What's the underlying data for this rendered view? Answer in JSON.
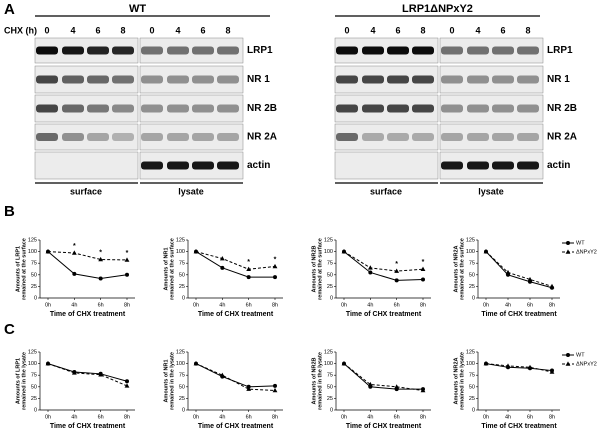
{
  "panel_labels": [
    "A",
    "B",
    "C"
  ],
  "blot": {
    "lane_axis_label": "CHX (h)",
    "groups": [
      {
        "title": "WT",
        "lanes": [
          "0",
          "4",
          "6",
          "8",
          "0",
          "4",
          "6",
          "8"
        ],
        "fractions": [
          "surface",
          "lysate"
        ],
        "rows": [
          "LRP1",
          "NR 1",
          "NR 2B",
          "NR 2A",
          "actin"
        ]
      },
      {
        "title": "LRP1ΔNPxY2",
        "lanes": [
          "0",
          "4",
          "6",
          "8",
          "0",
          "4",
          "6",
          "8"
        ],
        "fractions": [
          "surface",
          "lysate"
        ],
        "rows": [
          "LRP1",
          "NR 1",
          "NR 2B",
          "NR 2A",
          "actin"
        ]
      }
    ]
  },
  "chart_data": [
    {
      "type": "line",
      "ylabel": [
        "Amounts of LRP1",
        "remained at the surface"
      ],
      "xlabel": "Time of CHX treatment",
      "categories": [
        "0h",
        "4h",
        "6h",
        "8h"
      ],
      "ylim": [
        0,
        125
      ],
      "yticks": [
        0,
        25,
        50,
        75,
        100,
        125
      ],
      "series": [
        {
          "color": "#000000",
          "marker": "circle",
          "dash": false,
          "values": [
            100,
            52,
            42,
            50
          ]
        },
        {
          "color": "#000000",
          "marker": "triangle",
          "dash": true,
          "values": [
            100,
            97,
            83,
            82
          ]
        }
      ],
      "annotations": [
        {
          "text": "*",
          "category": "4h"
        },
        {
          "text": "*",
          "category": "6h"
        },
        {
          "text": "*",
          "category": "8h"
        }
      ]
    },
    {
      "type": "line",
      "ylabel": [
        "Amounts of NR1",
        "remained at the surface"
      ],
      "xlabel": "Time of CHX treatment",
      "categories": [
        "0h",
        "4h",
        "6h",
        "8h"
      ],
      "ylim": [
        0,
        125
      ],
      "yticks": [
        0,
        25,
        50,
        75,
        100,
        125
      ],
      "series": [
        {
          "color": "#000000",
          "marker": "circle",
          "dash": false,
          "values": [
            100,
            65,
            45,
            45
          ]
        },
        {
          "color": "#000000",
          "marker": "triangle",
          "dash": true,
          "values": [
            100,
            85,
            62,
            68
          ]
        }
      ],
      "annotations": [
        {
          "text": "*",
          "category": "6h"
        },
        {
          "text": "*",
          "category": "8h"
        }
      ]
    },
    {
      "type": "line",
      "ylabel": [
        "Amounts of NR2B",
        "remained at the surface"
      ],
      "xlabel": "Time of CHX treatment",
      "categories": [
        "0h",
        "4h",
        "6h",
        "8h"
      ],
      "ylim": [
        0,
        125
      ],
      "yticks": [
        0,
        25,
        50,
        75,
        100,
        125
      ],
      "series": [
        {
          "color": "#000000",
          "marker": "circle",
          "dash": false,
          "values": [
            100,
            55,
            38,
            40
          ]
        },
        {
          "color": "#000000",
          "marker": "triangle",
          "dash": true,
          "values": [
            100,
            65,
            58,
            62
          ]
        }
      ],
      "annotations": [
        {
          "text": "*",
          "category": "6h"
        },
        {
          "text": "*",
          "category": "8h"
        }
      ]
    },
    {
      "type": "line",
      "ylabel": [
        "Amounts of NR2A",
        "remained at the surface"
      ],
      "xlabel": "Time of CHX treatment",
      "categories": [
        "0h",
        "4h",
        "6h",
        "8h"
      ],
      "ylim": [
        0,
        125
      ],
      "yticks": [
        0,
        25,
        50,
        75,
        100,
        125
      ],
      "legend": "right",
      "series": [
        {
          "name": "WT",
          "color": "#000000",
          "marker": "circle",
          "dash": false,
          "values": [
            100,
            50,
            35,
            22
          ]
        },
        {
          "name": "ΔNPxY2",
          "color": "#000000",
          "marker": "triangle",
          "dash": true,
          "values": [
            100,
            55,
            40,
            25
          ]
        }
      ]
    },
    {
      "type": "line",
      "ylabel": [
        "Amounts of LRP1",
        "remained in the lysate"
      ],
      "xlabel": "Time of CHX treatment",
      "categories": [
        "0h",
        "4h",
        "6h",
        "8h"
      ],
      "ylim": [
        0,
        125
      ],
      "yticks": [
        0,
        25,
        50,
        75,
        100,
        125
      ],
      "series": [
        {
          "color": "#000000",
          "marker": "circle",
          "dash": false,
          "values": [
            100,
            82,
            78,
            62
          ]
        },
        {
          "color": "#000000",
          "marker": "triangle",
          "dash": true,
          "values": [
            100,
            80,
            76,
            52
          ]
        }
      ]
    },
    {
      "type": "line",
      "ylabel": [
        "Amounts of NR1",
        "remained in the lysate"
      ],
      "xlabel": "Time of CHX treatment",
      "categories": [
        "0h",
        "4h",
        "6h",
        "8h"
      ],
      "ylim": [
        0,
        125
      ],
      "yticks": [
        0,
        25,
        50,
        75,
        100,
        125
      ],
      "series": [
        {
          "color": "#000000",
          "marker": "circle",
          "dash": false,
          "values": [
            100,
            72,
            50,
            52
          ]
        },
        {
          "color": "#000000",
          "marker": "triangle",
          "dash": true,
          "values": [
            100,
            75,
            45,
            42
          ]
        }
      ]
    },
    {
      "type": "line",
      "ylabel": [
        "Amounts of NR2B",
        "remained in the lysate"
      ],
      "xlabel": "Time of CHX treatment",
      "categories": [
        "0h",
        "4h",
        "6h",
        "8h"
      ],
      "ylim": [
        0,
        125
      ],
      "yticks": [
        0,
        25,
        50,
        75,
        100,
        125
      ],
      "series": [
        {
          "color": "#000000",
          "marker": "circle",
          "dash": false,
          "values": [
            100,
            50,
            45,
            45
          ]
        },
        {
          "color": "#000000",
          "marker": "triangle",
          "dash": true,
          "values": [
            100,
            55,
            50,
            42
          ]
        }
      ]
    },
    {
      "type": "line",
      "ylabel": [
        "Amounts of NR2A",
        "remained in the lysate"
      ],
      "xlabel": "Time of CHX treatment",
      "categories": [
        "0h",
        "4h",
        "6h",
        "8h"
      ],
      "ylim": [
        0,
        125
      ],
      "yticks": [
        0,
        25,
        50,
        75,
        100,
        125
      ],
      "legend": "right",
      "series": [
        {
          "name": "WT",
          "color": "#000000",
          "marker": "circle",
          "dash": false,
          "values": [
            100,
            92,
            90,
            85
          ]
        },
        {
          "name": "ΔNPxY2",
          "color": "#000000",
          "marker": "triangle",
          "dash": true,
          "values": [
            100,
            95,
            92,
            82
          ]
        }
      ]
    }
  ]
}
